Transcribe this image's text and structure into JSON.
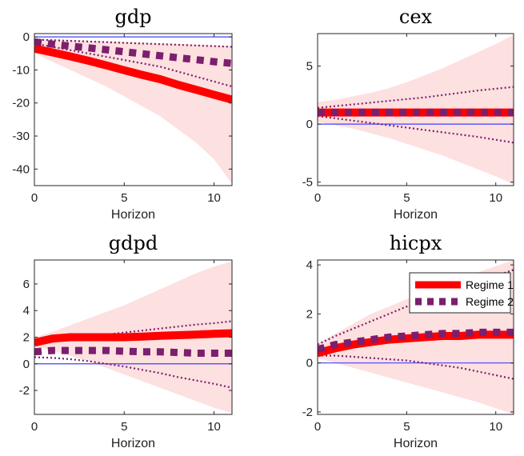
{
  "legend": {
    "placement": "top-right of hicpx panel",
    "entries": [
      {
        "label": "Regime 1",
        "color": "#ff0000",
        "style": "thick solid"
      },
      {
        "label": "Regime 2",
        "color": "#7b1f6e",
        "style": "thick dashed"
      }
    ]
  },
  "colors": {
    "regime1": "#ff0000",
    "regime2": "#7b1f6e",
    "band": "#fde0e0",
    "zero_line": "#4040ff"
  },
  "chart_data": [
    {
      "type": "line",
      "title": "gdp",
      "xlabel": "Horizon",
      "ylabel": "",
      "xlim": [
        0,
        11
      ],
      "ylim": [
        -45,
        1
      ],
      "xticks": [
        0,
        5,
        10
      ],
      "yticks": [
        0,
        -10,
        -20,
        -30,
        -40
      ],
      "x": [
        0,
        1,
        2,
        3,
        4,
        5,
        6,
        7,
        8,
        9,
        10,
        11
      ],
      "series": [
        {
          "name": "Regime 1",
          "values": [
            -3.5,
            -4.7,
            -5.9,
            -7.2,
            -8.6,
            -10.1,
            -11.5,
            -12.8,
            -14.5,
            -16,
            -17.5,
            -19
          ]
        },
        {
          "name": "Regime 2",
          "values": [
            -1.5,
            -2.2,
            -2.8,
            -3.3,
            -3.9,
            -4.5,
            -5.1,
            -5.7,
            -6.3,
            -6.9,
            -7.5,
            -8
          ]
        }
      ],
      "band": {
        "lower": [
          -5,
          -7.5,
          -10,
          -12.5,
          -15,
          -18,
          -21,
          -24,
          -28,
          -32,
          -37,
          -44.5
        ],
        "upper": [
          -0.5,
          -0.7,
          -0.9,
          -1.1,
          -1.3,
          -1.5,
          -1.7,
          -1.9,
          -2.1,
          -2.3,
          -2.5,
          -2.8
        ]
      },
      "regime2_bounds": {
        "lower": [
          -2,
          -3,
          -4,
          -5,
          -6,
          -7,
          -8,
          -9,
          -10.5,
          -12,
          -13.5,
          -15
        ],
        "upper": [
          -0.8,
          -1,
          -1.2,
          -1.4,
          -1.6,
          -1.8,
          -2,
          -2.2,
          -2.4,
          -2.6,
          -2.8,
          -3
        ]
      }
    },
    {
      "type": "line",
      "title": "cex",
      "xlabel": "Horizon",
      "ylabel": "",
      "xlim": [
        0,
        11
      ],
      "ylim": [
        -5.3,
        7.8
      ],
      "xticks": [
        0,
        5,
        10
      ],
      "yticks": [
        5,
        0,
        -5
      ],
      "x": [
        0,
        1,
        2,
        3,
        4,
        5,
        6,
        7,
        8,
        9,
        10,
        11
      ],
      "series": [
        {
          "name": "Regime 1",
          "values": [
            1,
            1,
            1,
            1,
            1,
            1,
            1,
            1,
            1,
            1,
            1,
            1
          ]
        },
        {
          "name": "Regime 2",
          "values": [
            1,
            1,
            1,
            1,
            1,
            1,
            1,
            1,
            1,
            1,
            1,
            1
          ]
        }
      ],
      "band": {
        "lower": [
          0.2,
          -0.1,
          -0.4,
          -0.8,
          -1.2,
          -1.7,
          -2.2,
          -2.7,
          -3.3,
          -3.9,
          -4.5,
          -5.2
        ],
        "upper": [
          1.9,
          2.1,
          2.4,
          2.7,
          3.1,
          3.6,
          4.2,
          4.8,
          5.5,
          6.2,
          6.9,
          7.7
        ]
      },
      "regime2_bounds": {
        "lower": [
          0.7,
          0.5,
          0.3,
          0.1,
          -0.1,
          -0.3,
          -0.5,
          -0.7,
          -0.9,
          -1.1,
          -1.35,
          -1.6
        ],
        "upper": [
          1.4,
          1.55,
          1.7,
          1.85,
          2,
          2.15,
          2.3,
          2.5,
          2.7,
          2.9,
          3.05,
          3.2
        ]
      }
    },
    {
      "type": "line",
      "title": "gdpd",
      "xlabel": "Horizon",
      "ylabel": "",
      "xlim": [
        0,
        11
      ],
      "ylim": [
        -3.8,
        7.8
      ],
      "xticks": [
        0,
        5,
        10
      ],
      "yticks": [
        6,
        4,
        2,
        0,
        -2
      ],
      "x": [
        0,
        1,
        2,
        3,
        4,
        5,
        6,
        7,
        8,
        9,
        10,
        11
      ],
      "series": [
        {
          "name": "Regime 1",
          "values": [
            1.6,
            1.9,
            2,
            2,
            2,
            2,
            2.05,
            2.1,
            2.15,
            2.2,
            2.25,
            2.3
          ]
        },
        {
          "name": "Regime 2",
          "values": [
            0.9,
            1,
            1,
            1,
            1,
            0.95,
            0.9,
            0.9,
            0.85,
            0.8,
            0.8,
            0.8
          ]
        }
      ],
      "band": {
        "lower": [
          1.3,
          1,
          0.6,
          0.2,
          -0.3,
          -0.8,
          -1.3,
          -1.8,
          -2.3,
          -2.8,
          -3.3,
          -3.7
        ],
        "upper": [
          2,
          2.4,
          2.9,
          3.4,
          3.9,
          4.4,
          5,
          5.6,
          6.2,
          6.8,
          7.3,
          7.7
        ]
      },
      "regime2_bounds": {
        "lower": [
          0.5,
          0.45,
          0.35,
          0.2,
          0,
          -0.2,
          -0.45,
          -0.7,
          -1,
          -1.25,
          -1.5,
          -1.8
        ],
        "upper": [
          1.5,
          1.7,
          1.85,
          2,
          2.2,
          2.35,
          2.5,
          2.65,
          2.8,
          2.95,
          3.05,
          3.2
        ]
      }
    },
    {
      "type": "line",
      "title": "hicpx",
      "xlabel": "Horizon",
      "ylabel": "",
      "xlim": [
        0,
        11
      ],
      "ylim": [
        -2.1,
        4.2
      ],
      "xticks": [
        0,
        5,
        10
      ],
      "yticks": [
        4,
        2,
        0,
        -2
      ],
      "x": [
        0,
        1,
        2,
        3,
        4,
        5,
        6,
        7,
        8,
        9,
        10,
        11
      ],
      "series": [
        {
          "name": "Regime 1",
          "values": [
            0.4,
            0.6,
            0.75,
            0.85,
            0.95,
            1,
            1.05,
            1.1,
            1.1,
            1.15,
            1.15,
            1.15
          ]
        },
        {
          "name": "Regime 2",
          "values": [
            0.55,
            0.75,
            0.85,
            0.95,
            1.05,
            1.1,
            1.15,
            1.2,
            1.2,
            1.25,
            1.25,
            1.25
          ]
        }
      ],
      "band": {
        "lower": [
          0.2,
          0,
          -0.2,
          -0.4,
          -0.6,
          -0.8,
          -1,
          -1.2,
          -1.4,
          -1.6,
          -1.85,
          -2.1
        ],
        "upper": [
          0.8,
          1.2,
          1.6,
          2,
          2.3,
          2.6,
          2.9,
          3.2,
          3.5,
          3.7,
          3.95,
          4.2
        ]
      },
      "regime2_bounds": {
        "lower": [
          0.3,
          0.3,
          0.25,
          0.2,
          0.15,
          0.1,
          0,
          -0.1,
          -0.2,
          -0.35,
          -0.5,
          -0.65
        ],
        "upper": [
          0.75,
          1.1,
          1.4,
          1.7,
          2,
          2.3,
          2.55,
          2.8,
          3.05,
          3.3,
          3.55,
          3.8
        ]
      }
    }
  ]
}
